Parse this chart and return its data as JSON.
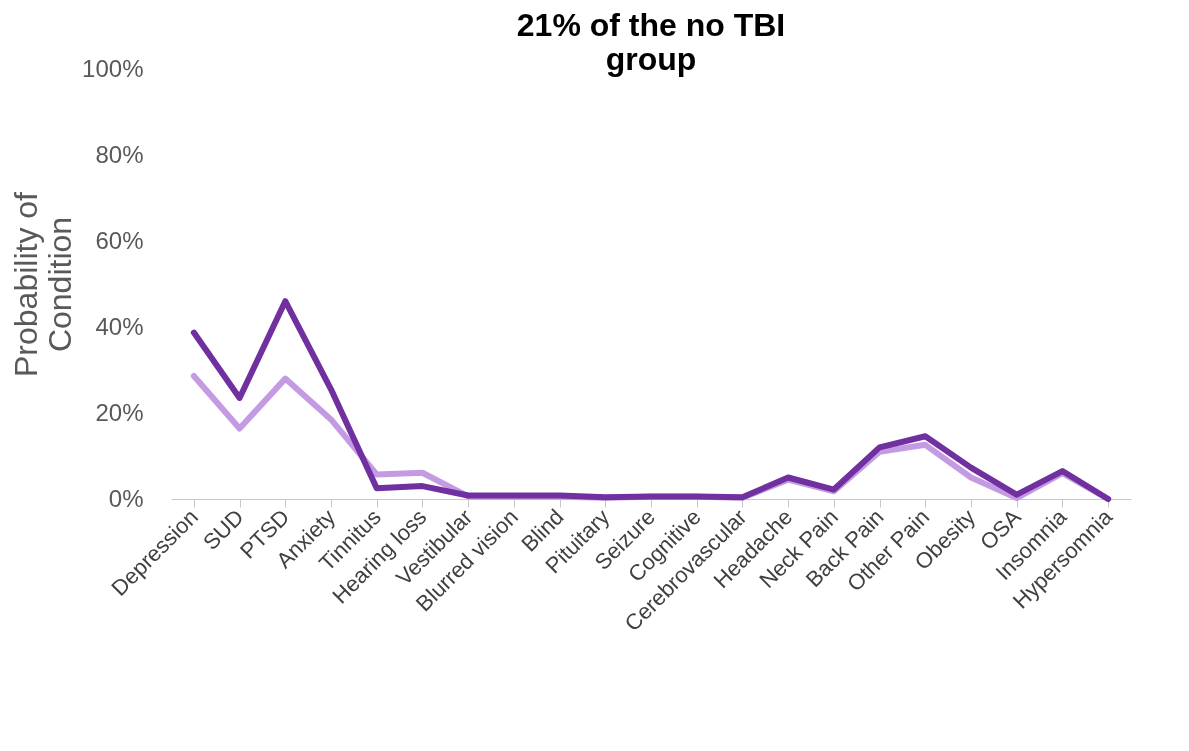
{
  "chart_data": {
    "type": "line",
    "title": [
      "21% of the no TBI",
      "group"
    ],
    "ylabel": "Probability of Condition",
    "categories": [
      "Depression",
      "SUD",
      "PTSD",
      "Anxiety",
      "Tinnitus",
      "Hearing loss",
      "Vestibular",
      "Blurred vision",
      "Blind",
      "Pituitary",
      "Seizure",
      "Cognitive",
      "Cerebrovascular",
      "Headache",
      "Neck Pain",
      "Back Pain",
      "Other Pain",
      "Obesity",
      "OSA",
      "Insomnia",
      "Hypersomnia"
    ],
    "series": [
      {
        "color": "#c49be3",
        "values": [
          28.6,
          16.4,
          28,
          18.5,
          5.7,
          6.1,
          0.6,
          0.5,
          0.5,
          0.3,
          0.5,
          0.5,
          0.3,
          4.5,
          1.8,
          11,
          12.6,
          5,
          0.2,
          6,
          0
        ]
      },
      {
        "color": "#7030a0",
        "values": [
          38.7,
          23.5,
          46,
          25.5,
          2.5,
          3,
          0.8,
          0.8,
          0.8,
          0.4,
          0.6,
          0.6,
          0.4,
          5,
          2.2,
          12,
          14.6,
          7.3,
          1,
          6.5,
          0
        ]
      }
    ],
    "ylim": [
      0,
      100
    ],
    "yticks": [
      {
        "value": 0,
        "label": "0%"
      },
      {
        "value": 20,
        "label": "20%"
      },
      {
        "value": 40,
        "label": "40%"
      },
      {
        "value": 60,
        "label": "60%"
      },
      {
        "value": 80,
        "label": "80%"
      },
      {
        "value": 100,
        "label": "100%"
      }
    ],
    "grid": false,
    "legend": false,
    "marker": "none",
    "line_style": "solid"
  }
}
